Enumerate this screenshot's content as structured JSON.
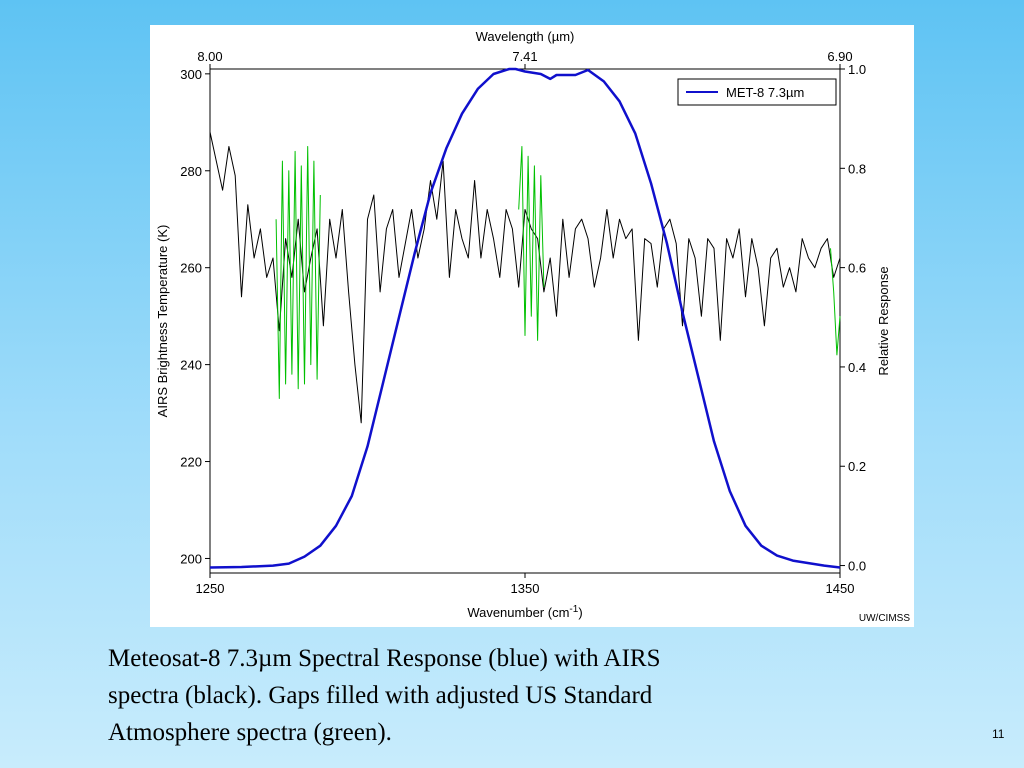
{
  "slide": {
    "caption_lines": [
      "Meteosat-8 7.3µm Spectral Response (blue) with AIRS",
      "spectra (black). Gaps filled with adjusted US Standard",
      "Atmosphere spectra (green)."
    ],
    "number": "11"
  },
  "chart_data": {
    "type": "line",
    "top_axis": {
      "title": "Wavelength (µm)",
      "ticks": [
        {
          "label": "8.00",
          "wavenumber": 1250
        },
        {
          "label": "7.41",
          "wavenumber": 1350
        },
        {
          "label": "6.90",
          "wavenumber": 1450
        }
      ]
    },
    "x_axis": {
      "title": "Wavenumber (cm",
      "title_sup": "-1",
      "title_end": ")",
      "range": [
        1250,
        1450
      ],
      "ticks": [
        1250,
        1350,
        1450
      ]
    },
    "y_axis_left": {
      "title": "AIRS Brightness Temperature (K)",
      "range": [
        197,
        301
      ],
      "ticks": [
        200,
        220,
        240,
        260,
        280,
        300
      ]
    },
    "y_axis_right": {
      "title": "Relative Response",
      "range": [
        -0.015,
        1.0
      ],
      "ticks": [
        0.0,
        0.2,
        0.4,
        0.6,
        0.8,
        1.0
      ],
      "tick_labels": [
        "0.0",
        "0.2",
        "0.4",
        "0.6",
        "0.8",
        "1.0"
      ]
    },
    "legend": {
      "position": "top-right",
      "entries": [
        {
          "name": "MET-8 7.3µm",
          "color": "#1010cc"
        }
      ]
    },
    "grid": false,
    "credit": "UW/CIMSS",
    "colors": {
      "response": "#1010cc",
      "airs": "#000000",
      "us_standard": "#00c000"
    },
    "series": [
      {
        "name": "MET-8 7.3µm",
        "axis": "right",
        "x": [
          1250,
          1260,
          1270,
          1275,
          1280,
          1285,
          1290,
          1295,
          1300,
          1305,
          1310,
          1315,
          1320,
          1325,
          1330,
          1335,
          1340,
          1345,
          1347,
          1350,
          1355,
          1358,
          1360,
          1363,
          1366,
          1370,
          1375,
          1380,
          1385,
          1390,
          1395,
          1400,
          1405,
          1410,
          1415,
          1420,
          1425,
          1430,
          1435,
          1440,
          1445,
          1450
        ],
        "y": [
          -0.004,
          -0.003,
          0.0,
          0.004,
          0.018,
          0.04,
          0.08,
          0.14,
          0.24,
          0.37,
          0.5,
          0.63,
          0.75,
          0.84,
          0.91,
          0.96,
          0.99,
          1.0,
          1.0,
          0.995,
          0.99,
          0.98,
          0.988,
          0.988,
          0.988,
          0.998,
          0.975,
          0.935,
          0.87,
          0.77,
          0.65,
          0.51,
          0.38,
          0.25,
          0.15,
          0.08,
          0.04,
          0.02,
          0.01,
          0.005,
          0.0,
          -0.004
        ]
      },
      {
        "name": "AIRS spectra",
        "axis": "left",
        "x": [
          1250,
          1252,
          1254,
          1256,
          1258,
          1260,
          1262,
          1264,
          1266,
          1268,
          1270,
          1272,
          1274,
          1276,
          1278,
          1280,
          1282,
          1284,
          1286,
          1288,
          1290,
          1292,
          1294,
          1296,
          1298,
          1300,
          1302,
          1304,
          1306,
          1308,
          1310,
          1312,
          1314,
          1316,
          1318,
          1320,
          1322,
          1324,
          1326,
          1328,
          1330,
          1332,
          1334,
          1336,
          1338,
          1340,
          1342,
          1344,
          1346,
          1348,
          1350,
          1352,
          1354,
          1356,
          1358,
          1360,
          1362,
          1364,
          1366,
          1368,
          1370,
          1372,
          1374,
          1376,
          1378,
          1380,
          1382,
          1384,
          1386,
          1388,
          1390,
          1392,
          1394,
          1396,
          1398,
          1400,
          1402,
          1404,
          1406,
          1408,
          1410,
          1412,
          1414,
          1416,
          1418,
          1420,
          1422,
          1424,
          1426,
          1428,
          1430,
          1432,
          1434,
          1436,
          1438,
          1440,
          1442,
          1444,
          1446,
          1448,
          1450
        ],
        "y": [
          288,
          282,
          276,
          285,
          279,
          254,
          273,
          262,
          268,
          258,
          262,
          247,
          266,
          258,
          270,
          255,
          262,
          268,
          248,
          270,
          262,
          272,
          255,
          240,
          228,
          270,
          275,
          255,
          268,
          272,
          258,
          265,
          272,
          262,
          268,
          278,
          270,
          282,
          258,
          272,
          266,
          262,
          278,
          262,
          272,
          266,
          258,
          272,
          268,
          256,
          272,
          268,
          266,
          255,
          262,
          250,
          270,
          258,
          268,
          270,
          266,
          256,
          262,
          272,
          262,
          270,
          266,
          268,
          245,
          266,
          265,
          256,
          268,
          270,
          265,
          248,
          266,
          262,
          250,
          266,
          264,
          245,
          266,
          262,
          268,
          254,
          266,
          260,
          248,
          262,
          264,
          256,
          260,
          255,
          266,
          262,
          260,
          264,
          266,
          258,
          262
        ]
      },
      {
        "name": "US Standard Atmosphere (gap fill 1)",
        "axis": "left",
        "x": [
          1271,
          1272,
          1273,
          1274,
          1275,
          1276,
          1277,
          1278,
          1279,
          1280,
          1281,
          1282,
          1283,
          1284,
          1285
        ],
        "y": [
          270,
          233,
          282,
          236,
          280,
          238,
          284,
          235,
          281,
          236,
          285,
          240,
          282,
          237,
          275
        ]
      },
      {
        "name": "US Standard Atmosphere (gap fill 2)",
        "axis": "left",
        "x": [
          1348,
          1349,
          1350,
          1351,
          1352,
          1353,
          1354,
          1355,
          1356
        ],
        "y": [
          272,
          285,
          246,
          283,
          250,
          281,
          245,
          279,
          256
        ]
      },
      {
        "name": "US Standard Atmosphere (gap fill 3)",
        "axis": "left",
        "x": [
          1447,
          1448,
          1449,
          1450
        ],
        "y": [
          264,
          255,
          242,
          250
        ]
      }
    ]
  }
}
